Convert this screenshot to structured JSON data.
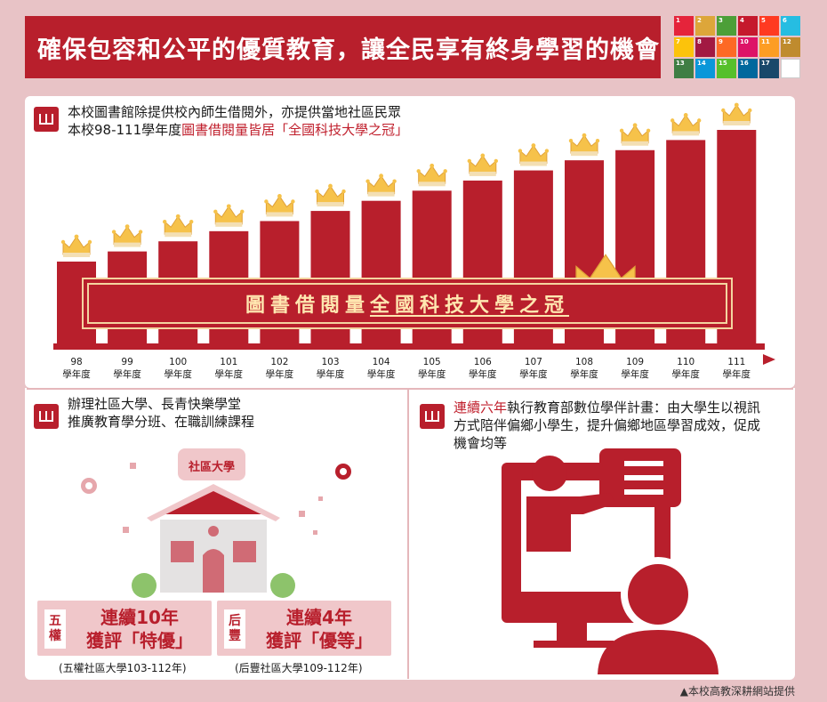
{
  "header": {
    "title": "確保包容和公平的優質教育，讓全民享有終身學習的機會"
  },
  "sdg_icons": [
    {
      "n": "1",
      "color": "#e5243b"
    },
    {
      "n": "2",
      "color": "#dda63a"
    },
    {
      "n": "3",
      "color": "#4c9f38"
    },
    {
      "n": "4",
      "color": "#c5192d"
    },
    {
      "n": "5",
      "color": "#ff3a21"
    },
    {
      "n": "6",
      "color": "#26bde2"
    },
    {
      "n": "7",
      "color": "#fcc30b"
    },
    {
      "n": "8",
      "color": "#a21942"
    },
    {
      "n": "9",
      "color": "#fd6925"
    },
    {
      "n": "10",
      "color": "#dd1367"
    },
    {
      "n": "11",
      "color": "#fd9d24"
    },
    {
      "n": "12",
      "color": "#bf8b2e"
    },
    {
      "n": "13",
      "color": "#3f7e44"
    },
    {
      "n": "14",
      "color": "#0a97d9"
    },
    {
      "n": "15",
      "color": "#56c02b"
    },
    {
      "n": "16",
      "color": "#00689d"
    },
    {
      "n": "17",
      "color": "#19486a"
    },
    {
      "n": "",
      "color": "#ffffff"
    }
  ],
  "library": {
    "line1": "本校圖書館除提供校內師生借閱外，亦提供當地社區民眾",
    "line2_prefix": "本校98-111學年度",
    "line2_highlight": "圖書借閱量皆居「全國科技大學之冠」",
    "banner_prefix": "圖書借閱量",
    "banner_underlined": "全國科技大學之冠"
  },
  "chart_data": {
    "type": "bar",
    "categories": [
      "98",
      "99",
      "100",
      "101",
      "102",
      "103",
      "104",
      "105",
      "106",
      "107",
      "108",
      "109",
      "110",
      "111"
    ],
    "category_suffix": "學年度",
    "values": [
      1,
      2,
      3,
      4,
      5,
      6,
      7,
      8,
      9,
      10,
      11,
      12,
      13,
      14
    ],
    "color": "#b81f2c"
  },
  "community": {
    "line1": "辦理社區大學、長青快樂學堂",
    "line2": "推廣教育學分班、在職訓練課程",
    "sign": "社區大學",
    "award1": {
      "char_top": "五",
      "char_bottom": "權",
      "line1": "連續10年",
      "line2": "獲評「特優」",
      "note": "(五權社區大學103-112年)"
    },
    "award2": {
      "char_top": "后",
      "char_bottom": "豐",
      "line1": "連續4年",
      "line2": "獲評「優等」",
      "note": "(后豐社區大學109-112年)"
    }
  },
  "tutoring": {
    "highlight": "連續六年",
    "line1_rest": "執行教育部數位學伴計畫：由大學生以視訊",
    "line2": "方式陪伴偏鄉小學生，提升偏鄉地區學習成效，促成",
    "line3": "機會均等"
  },
  "footer": {
    "text": "▲本校高教深耕網站提供"
  }
}
